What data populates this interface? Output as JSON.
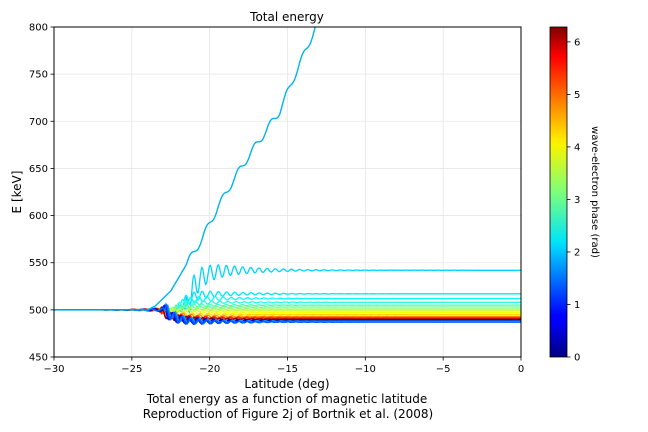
{
  "chart_data": {
    "type": "line",
    "title": "Total energy",
    "xlabel": "Latitude (deg)",
    "ylabel": "E [keV]",
    "caption_lines": [
      "Total energy as a function of magnetic latitude",
      "Reproduction of Figure 2j of Bortnik et al. (2008)"
    ],
    "xlim": [
      -30,
      0
    ],
    "ylim": [
      450,
      800
    ],
    "x_ticks": [
      -30,
      -25,
      -20,
      -15,
      -10,
      -5,
      0
    ],
    "x_tick_labels": [
      "−30",
      "−25",
      "−20",
      "−15",
      "−10",
      "−5",
      "0"
    ],
    "y_ticks": [
      450,
      500,
      550,
      600,
      650,
      700,
      750,
      800
    ],
    "y_tick_labels": [
      "450",
      "500",
      "550",
      "600",
      "650",
      "700",
      "750",
      "800"
    ],
    "grid": true,
    "initial_energy": 500,
    "series_note": "Each curve is one wave-electron phase; color encodes phase via jet colormap.",
    "series": [
      {
        "phase": 2.0,
        "final": 800,
        "peak_lat": -23.5,
        "escape": true
      },
      {
        "phase": 2.1,
        "final": 542,
        "peak_lat": -21.5
      },
      {
        "phase": 2.2,
        "final": 517,
        "peak_lat": -22.0
      },
      {
        "phase": 2.4,
        "final": 512,
        "peak_lat": -22.2
      },
      {
        "phase": 2.6,
        "final": 508,
        "peak_lat": -22.4
      },
      {
        "phase": 2.8,
        "final": 505,
        "peak_lat": -22.5
      },
      {
        "phase": 3.0,
        "final": 503,
        "peak_lat": -22.6
      },
      {
        "phase": 3.3,
        "final": 501,
        "peak_lat": -22.7
      },
      {
        "phase": 3.6,
        "final": 499,
        "peak_lat": -22.8
      },
      {
        "phase": 3.9,
        "final": 497,
        "peak_lat": -22.9
      },
      {
        "phase": 4.2,
        "final": 495,
        "peak_lat": -23.0
      },
      {
        "phase": 4.6,
        "final": 493,
        "peak_lat": -23.0
      },
      {
        "phase": 5.0,
        "final": 492,
        "peak_lat": -23.1
      },
      {
        "phase": 5.4,
        "final": 491,
        "peak_lat": -23.1
      },
      {
        "phase": 5.8,
        "final": 490,
        "peak_lat": -23.2
      },
      {
        "phase": 6.2,
        "final": 490,
        "peak_lat": -23.2
      },
      {
        "phase": 0.2,
        "final": 489,
        "peak_lat": -23.0
      },
      {
        "phase": 0.6,
        "final": 488,
        "peak_lat": -23.0
      },
      {
        "phase": 1.0,
        "final": 487,
        "peak_lat": -22.9
      },
      {
        "phase": 1.4,
        "final": 487,
        "peak_lat": -22.8
      },
      {
        "phase": 1.8,
        "final": 488,
        "peak_lat": -22.7
      }
    ],
    "escape_curve_points": [
      [
        -30,
        500
      ],
      [
        -24,
        500
      ],
      [
        -23.5,
        504
      ],
      [
        -22.5,
        520
      ],
      [
        -21.5,
        548
      ],
      [
        -20.5,
        575
      ],
      [
        -19.5,
        608
      ],
      [
        -18.5,
        637
      ],
      [
        -17.5,
        663
      ],
      [
        -16.5,
        687
      ],
      [
        -15.5,
        711
      ],
      [
        -14.5,
        750
      ],
      [
        -13.7,
        780
      ],
      [
        -13.2,
        800
      ]
    ],
    "colorbar": {
      "label": "wave-electron phase (rad)",
      "min": 0,
      "max": 6.283,
      "ticks": [
        0,
        1,
        2,
        3,
        4,
        5,
        6
      ],
      "tick_labels": [
        "0",
        "1",
        "2",
        "3",
        "4",
        "5",
        "6"
      ],
      "colormap": "jet"
    }
  }
}
